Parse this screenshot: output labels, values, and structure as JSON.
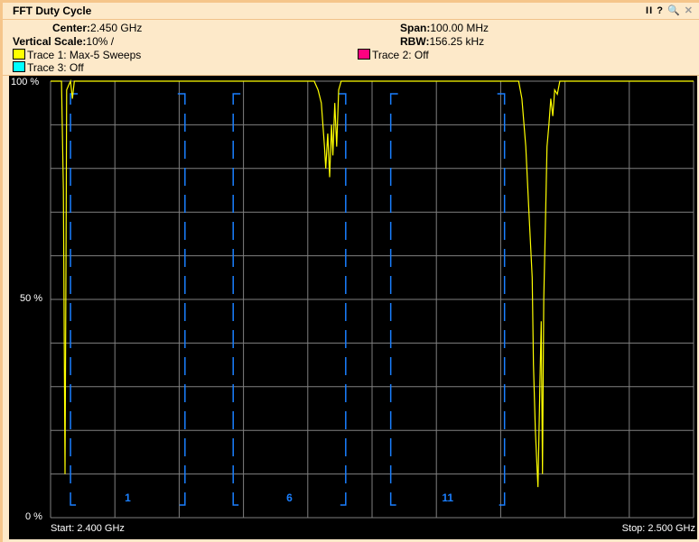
{
  "window": {
    "title": "FFT Duty Cycle",
    "controls": [
      "II",
      "?",
      "🔍",
      "✕"
    ]
  },
  "settings": {
    "center_label": "Center:",
    "center_value": "2.450 GHz",
    "span_label": "Span:",
    "span_value": "100.00 MHz",
    "vscale_label": "Vertical Scale:",
    "vscale_value": "10% /",
    "rbw_label": "RBW:",
    "rbw_value": "156.25 kHz"
  },
  "legend": [
    {
      "label": "Trace 1: Max-5 Sweeps",
      "color": "#ffff00"
    },
    {
      "label": "Trace 2: Off",
      "color": "#ff0080"
    },
    {
      "label": "Trace 3: Off",
      "color": "#00ffff"
    }
  ],
  "chart_data": {
    "type": "line",
    "y_ticks": [
      "100 %",
      "50 %",
      "0 %"
    ],
    "start_label": "Start: 2.400 GHz",
    "stop_label": "Stop: 2.500 GHz",
    "xlim_mhz": [
      2400,
      2500
    ],
    "ylim": [
      0,
      100
    ],
    "grid": true,
    "grid_divisions": {
      "x": 10,
      "y": 10
    },
    "channels": [
      {
        "label": "1",
        "start_mhz": 2403.1,
        "stop_mhz": 2420.9
      },
      {
        "label": "6",
        "start_mhz": 2428.4,
        "stop_mhz": 2445.9
      },
      {
        "label": "11",
        "start_mhz": 2452.9,
        "stop_mhz": 2470.6
      }
    ],
    "channel_color": "#1a7fff",
    "series": [
      {
        "name": "Trace 1: Max-5 Sweeps",
        "color": "#ffff00",
        "points": [
          [
            2400,
            100
          ],
          [
            2401.7,
            100
          ],
          [
            2402.0,
            75
          ],
          [
            2402.25,
            10
          ],
          [
            2402.4,
            60
          ],
          [
            2402.5,
            98
          ],
          [
            2402.8,
            99
          ],
          [
            2403.1,
            100
          ],
          [
            2403.4,
            96
          ],
          [
            2403.7,
            100
          ],
          [
            2441.0,
            100
          ],
          [
            2441.6,
            98
          ],
          [
            2442.1,
            95
          ],
          [
            2442.6,
            85
          ],
          [
            2442.8,
            80
          ],
          [
            2443.1,
            88
          ],
          [
            2443.4,
            78
          ],
          [
            2443.7,
            90
          ],
          [
            2443.9,
            83
          ],
          [
            2444.2,
            95
          ],
          [
            2444.5,
            85
          ],
          [
            2444.8,
            98
          ],
          [
            2445.2,
            100
          ],
          [
            2472.8,
            100
          ],
          [
            2473.3,
            96
          ],
          [
            2473.9,
            85
          ],
          [
            2474.4,
            70
          ],
          [
            2474.9,
            55
          ],
          [
            2475.1,
            35
          ],
          [
            2475.4,
            20
          ],
          [
            2475.7,
            10
          ],
          [
            2475.8,
            7
          ],
          [
            2476.1,
            30
          ],
          [
            2476.3,
            45
          ],
          [
            2476.5,
            10
          ],
          [
            2476.7,
            50
          ],
          [
            2477.0,
            70
          ],
          [
            2477.2,
            85
          ],
          [
            2477.5,
            90
          ],
          [
            2477.8,
            96
          ],
          [
            2478.1,
            92
          ],
          [
            2478.4,
            98
          ],
          [
            2478.8,
            97
          ],
          [
            2479.2,
            100
          ],
          [
            2500,
            100
          ]
        ]
      }
    ]
  }
}
